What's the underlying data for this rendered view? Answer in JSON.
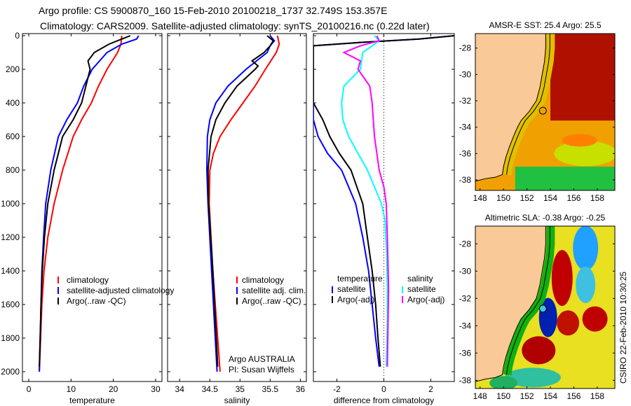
{
  "title_line1": "Argo profile: CS 5900870_160 15-Feb-2010 20100218_1737 32.749S 153.357E",
  "title_line2": "Climatology: CARS2009. Satellite-adjusted climatology: synTS_20100216.nc (0.22d later)",
  "footer_stamp": "CSIRO 22-Feb-2010 10:30:25",
  "colors": {
    "red": "#ff0000",
    "blue": "#0000ff",
    "black": "#000000",
    "cyan": "#00ffff",
    "magenta": "#ff00ff",
    "land": "#f9c997"
  },
  "chart_data": [
    {
      "type": "line",
      "xlabel": "temperature",
      "ylabel": "",
      "xlim": [
        -1.5,
        31.5
      ],
      "ylim": [
        2070,
        0
      ],
      "xticks": [
        "0",
        "10",
        "20",
        "30"
      ],
      "xtick_values": [
        0,
        10,
        20,
        30
      ],
      "yticks": [
        "0",
        "200",
        "400",
        "600",
        "800",
        "1000",
        "1200",
        "1400",
        "1600",
        "1800",
        "2000"
      ],
      "ytick_values": [
        0,
        200,
        400,
        600,
        800,
        1000,
        1200,
        1400,
        1600,
        1800,
        2000
      ],
      "legend": [
        "climatology",
        "satellite-adjusted climatology",
        "Argo(..raw -QC)"
      ],
      "series": [
        {
          "name": "climatology",
          "color": "#ff0000",
          "depth": [
            0,
            50,
            100,
            200,
            300,
            400,
            500,
            600,
            800,
            1000,
            1200,
            1400,
            1600,
            1800,
            2000
          ],
          "values": [
            22,
            21.8,
            21,
            18.5,
            16.5,
            14.8,
            12.5,
            10.5,
            8,
            6,
            4.5,
            3.6,
            3.1,
            2.8,
            2.5
          ]
        },
        {
          "name": "satellite-adjusted climatology",
          "color": "#0000ff",
          "depth": [
            0,
            20,
            50,
            100,
            200,
            300,
            400,
            500,
            600,
            800,
            1000,
            1200,
            1400,
            1600,
            1800,
            2000
          ],
          "values": [
            26,
            25.5,
            22,
            18.5,
            15,
            13,
            11.5,
            9,
            7,
            5.2,
            4,
            3.5,
            3.1,
            2.9,
            2.7,
            2.5
          ]
        },
        {
          "name": "Argo(..raw -QC)",
          "color": "#000000",
          "depth": [
            0,
            20,
            50,
            100,
            150,
            200,
            300,
            400,
            500,
            600,
            800,
            1000,
            1200,
            1400,
            1600,
            1800,
            1970
          ],
          "values": [
            24,
            22,
            19,
            15.5,
            14,
            14.5,
            13.5,
            12.5,
            10.5,
            8,
            6,
            4.5,
            3.7,
            3.2,
            2.9,
            2.7,
            2.5
          ]
        }
      ]
    },
    {
      "type": "line",
      "xlabel": "salinity",
      "xlim": [
        33.8,
        36.1
      ],
      "ylim": [
        2070,
        0
      ],
      "xticks": [
        "34",
        "34.5",
        "35",
        "35.5",
        "36"
      ],
      "xtick_values": [
        34,
        34.5,
        35,
        35.5,
        36
      ],
      "legend": [
        "climatology",
        "satellite adj. clim.",
        "Argo(..raw -QC)"
      ],
      "annotation": [
        "Argo AUSTRALIA",
        "PI: Susan Wijffels"
      ],
      "series": [
        {
          "name": "climatology",
          "color": "#ff0000",
          "depth": [
            0,
            50,
            100,
            200,
            300,
            400,
            500,
            600,
            700,
            800,
            1000,
            1400,
            2000
          ],
          "values": [
            35.62,
            35.65,
            35.6,
            35.42,
            35.25,
            35.05,
            34.85,
            34.67,
            34.56,
            34.5,
            34.49,
            34.55,
            34.67
          ]
        },
        {
          "name": "satellite adj. clim.",
          "color": "#0000ff",
          "depth": [
            0,
            30,
            60,
            100,
            200,
            300,
            400,
            500,
            600,
            800,
            1000,
            1400,
            2000
          ],
          "values": [
            35.5,
            35.57,
            35.5,
            35.45,
            35.1,
            34.8,
            34.6,
            34.5,
            34.46,
            34.45,
            34.47,
            34.53,
            34.62
          ]
        },
        {
          "name": "Argo(..raw -QC)",
          "color": "#000000",
          "depth": [
            0,
            30,
            60,
            100,
            150,
            180,
            200,
            300,
            400,
            500,
            600,
            800,
            1000,
            1400,
            1970
          ],
          "values": [
            35.45,
            35.55,
            35.5,
            35.4,
            35.2,
            35.3,
            35.25,
            34.95,
            34.75,
            34.6,
            34.52,
            34.47,
            34.48,
            34.55,
            34.63
          ]
        }
      ]
    },
    {
      "type": "line",
      "xlabel": "difference from climatology",
      "xlim": [
        -3,
        3
      ],
      "ylim": [
        2070,
        0
      ],
      "xticks": [
        "-2",
        "0",
        "2"
      ],
      "xtick_values": [
        -2,
        0,
        2
      ],
      "legend_temperature": [
        "temperature",
        "satellite",
        "Argo(-adj)"
      ],
      "legend_salinity": [
        "salinity",
        "satellite",
        "Argo(-adj)"
      ],
      "series": [
        {
          "name": "temperature satellite",
          "color": "#0000ff",
          "depth": [
            0,
            20,
            40,
            60,
            100,
            500,
            600,
            700,
            800,
            1000,
            1200,
            1400,
            1600,
            1800,
            1970
          ],
          "values": [
            3,
            1.5,
            -1,
            -3,
            -3,
            -3,
            -2.8,
            -2.4,
            -1.8,
            -1.2,
            -0.9,
            -0.65,
            -0.5,
            -0.35,
            -0.2
          ]
        },
        {
          "name": "temperature Argo(-adj)",
          "color": "#000000",
          "depth": [
            0,
            20,
            40,
            60,
            100,
            400,
            500,
            600,
            700,
            800,
            1000,
            1200,
            1400,
            1600,
            1800,
            1970
          ],
          "values": [
            3,
            1.5,
            -1,
            -3,
            -3,
            -3,
            -2.6,
            -2.3,
            -1.9,
            -1.4,
            -0.9,
            -0.7,
            -0.5,
            -0.35,
            -0.25,
            -0.15
          ]
        },
        {
          "name": "salinity satellite",
          "color": "#00ffff",
          "depth": [
            0,
            30,
            60,
            100,
            200,
            300,
            400,
            500,
            600,
            700,
            800,
            900,
            1000,
            1100,
            1300,
            1500,
            1700,
            1970
          ],
          "values": [
            -0.4,
            -0.2,
            -0.5,
            -0.9,
            -1.0,
            -1.7,
            -1.8,
            -1.75,
            -1.5,
            -1.1,
            -0.7,
            -0.4,
            -0.1,
            0.05,
            0.12,
            0.15,
            0.15,
            0.1
          ]
        },
        {
          "name": "salinity Argo(-adj)",
          "color": "#ff00ff",
          "depth": [
            0,
            30,
            60,
            100,
            150,
            200,
            300,
            400,
            500,
            600,
            700,
            800,
            900,
            1000,
            1200,
            1500,
            1970
          ],
          "values": [
            -0.3,
            -0.2,
            -1.0,
            -1.7,
            -1.0,
            -1.1,
            -0.6,
            -0.5,
            -0.45,
            -0.4,
            -0.3,
            -0.2,
            0.0,
            0.1,
            0.15,
            0.2,
            0.15
          ]
        }
      ]
    },
    {
      "type": "heatmap",
      "title": "AMSR-E SST: 25.4  Argo: 25.5",
      "xlim": [
        147.6,
        159.5
      ],
      "ylim": [
        -38.8,
        -26.9
      ],
      "xticks": [
        "148",
        "150",
        "152",
        "154",
        "156",
        "158"
      ],
      "xtick_values": [
        148,
        150,
        152,
        154,
        156,
        158
      ],
      "yticks": [
        "-28",
        "-30",
        "-32",
        "-34",
        "-36",
        "-38"
      ],
      "ytick_values": [
        -28,
        -30,
        -32,
        -34,
        -36,
        -38
      ],
      "argo_position": {
        "lon": 153.357,
        "lat": -32.749
      }
    },
    {
      "type": "heatmap",
      "title": "Altimetric SLA: -0.38  Argo: -0.25",
      "xlim": [
        147.6,
        159.5
      ],
      "ylim": [
        -38.6,
        -26.7
      ],
      "xticks": [
        "148",
        "150",
        "152",
        "154",
        "156",
        "158"
      ],
      "xtick_values": [
        148,
        150,
        152,
        154,
        156,
        158
      ],
      "yticks": [
        "-28",
        "-30",
        "-32",
        "-34",
        "-36",
        "-38"
      ],
      "ytick_values": [
        -28,
        -30,
        -32,
        -34,
        -36,
        -38
      ],
      "argo_position": {
        "lon": 153.357,
        "lat": -32.749
      }
    }
  ]
}
